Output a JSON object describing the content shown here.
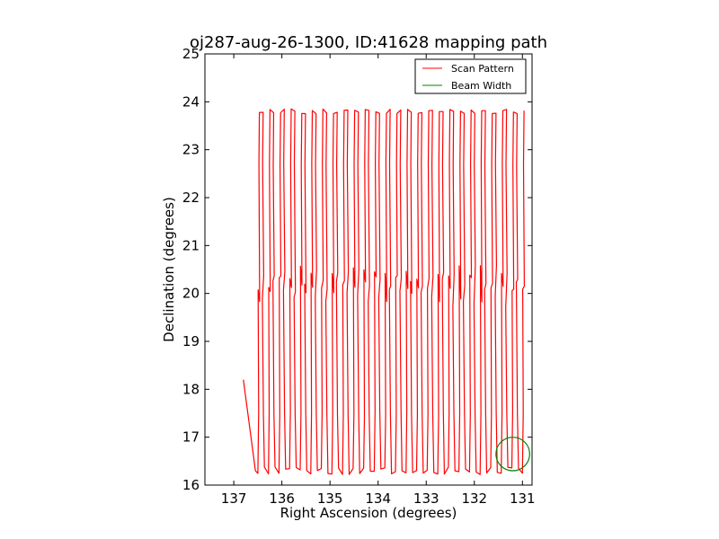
{
  "chart_data": {
    "type": "line",
    "title": "oj287-aug-26-1300, ID:41628 mapping path",
    "xlabel": "Right Ascension (degrees)",
    "ylabel": "Declination (degrees)",
    "xlim": [
      137.6,
      130.8
    ],
    "ylim": [
      16,
      25
    ],
    "x_ticks": [
      "137",
      "136",
      "135",
      "134",
      "133",
      "132",
      "131"
    ],
    "y_ticks": [
      "16",
      "17",
      "18",
      "19",
      "20",
      "21",
      "22",
      "23",
      "24",
      "25"
    ],
    "x_tick_values": [
      137,
      136,
      135,
      134,
      133,
      132,
      131
    ],
    "y_tick_values": [
      16,
      17,
      18,
      19,
      20,
      21,
      22,
      23,
      24,
      25
    ],
    "grid": false,
    "legend": {
      "placement": "top-right",
      "entries": [
        "Scan Pattern",
        "Beam Width"
      ]
    },
    "series": [
      {
        "name": "Scan Pattern",
        "color": "#ff0000",
        "scan": {
          "ra_start": 136.5,
          "ra_end": 131.0,
          "columns": 51,
          "dec_bottom": 16.3,
          "dec_lower_turn": 17.5,
          "dec_middle": 20.3,
          "dec_upper_turn": 22.7,
          "dec_top": 23.8
        },
        "lead_in": [
          [
            136.8,
            18.2
          ],
          [
            136.55,
            16.3
          ]
        ]
      },
      {
        "name": "Beam Width",
        "color": "#008000",
        "circle": {
          "ra": 131.2,
          "dec": 16.65,
          "radius_deg": 0.35
        }
      }
    ]
  }
}
